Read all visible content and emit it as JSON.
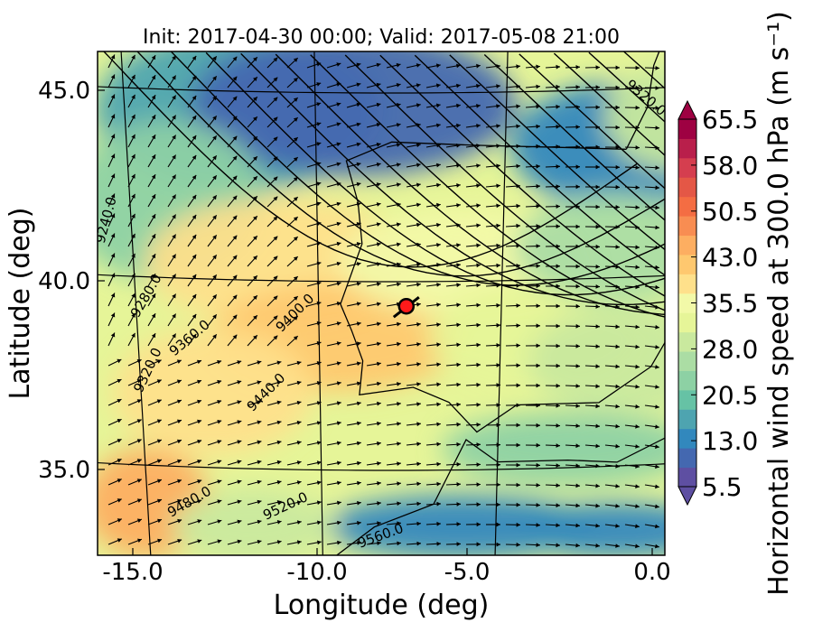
{
  "chart_data": {
    "type": "heatmap",
    "title": "Init: 2017-04-30 00:00; Valid: 2017-05-08 21:00",
    "xlabel": "Longitude (deg)",
    "ylabel": "Latitude (deg)",
    "colorbar_label": "Horizontal wind speed at 300.0 hPa (m s⁻¹)",
    "x_ticks": [
      "-15.0",
      "-10.0",
      "-5.0",
      "0.0"
    ],
    "y_ticks": [
      "45.0",
      "40.0",
      "35.0"
    ],
    "colorbar_ticks": [
      "65.5",
      "58.0",
      "50.5",
      "43.0",
      "35.5",
      "28.0",
      "20.5",
      "13.0",
      "5.5"
    ],
    "colorbar_range": [
      5.5,
      65.5
    ],
    "colorbar_colors": [
      "#5e4fa2",
      "#4468b0",
      "#3288bd",
      "#4ea4b0",
      "#66c2a5",
      "#8dd1a4",
      "#abdda4",
      "#c9e99e",
      "#e6f598",
      "#f2f9a8",
      "#fee08b",
      "#fec86f",
      "#fdae61",
      "#f88d52",
      "#f46d43",
      "#e45746",
      "#d53e4f",
      "#b91f4b",
      "#9e0142"
    ],
    "contour_labels": [
      "9240.0",
      "9280.0",
      "9320.0",
      "9360.0",
      "9400.0",
      "9440.0",
      "9480.0",
      "9520.0",
      "9560.0",
      "9320.0"
    ],
    "marker": {
      "lon": -7.6,
      "lat": 39.35,
      "color": "#ff1a1a"
    },
    "grid": true
  }
}
